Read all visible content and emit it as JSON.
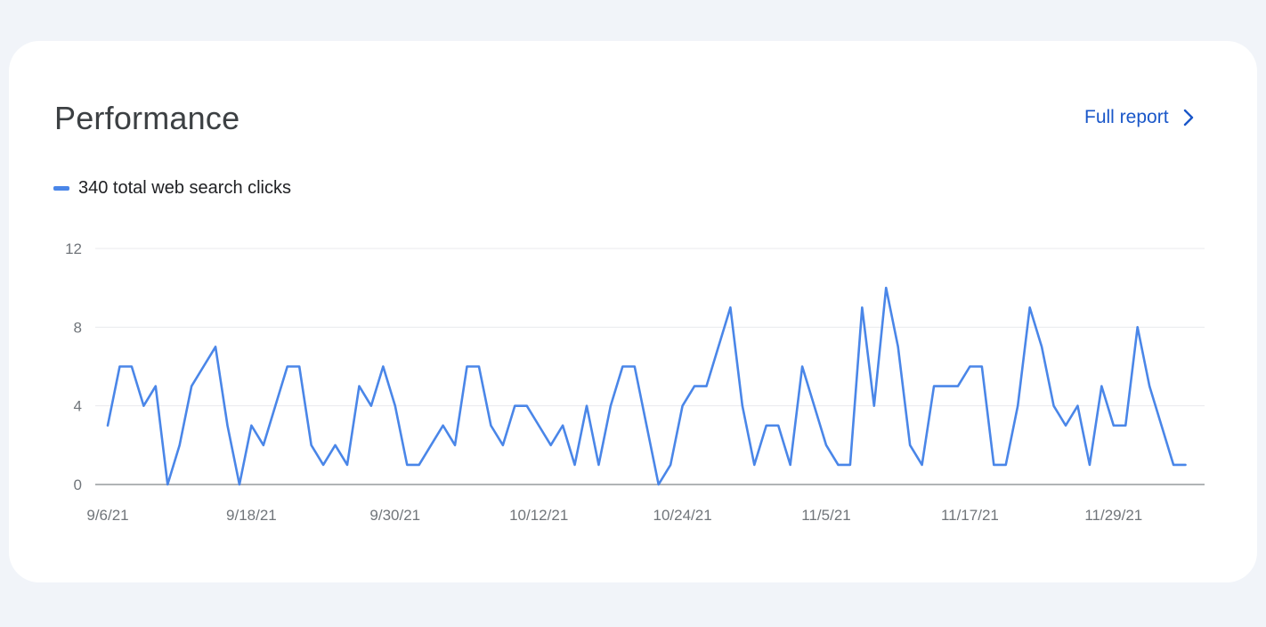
{
  "card": {
    "title": "Performance",
    "full_report_label": "Full report",
    "legend_label": "340 total web search clicks"
  },
  "colors": {
    "background": "#f1f4f9",
    "card": "#ffffff",
    "line": "#4a86e8",
    "link": "#1a57c9",
    "grid": "#e8eaed",
    "axis": "#80868b"
  },
  "icons": {
    "full_report": "chevron-right-icon"
  },
  "chart_data": {
    "type": "line",
    "title": "",
    "xlabel": "",
    "ylabel": "",
    "ylim": [
      0,
      12
    ],
    "yticks": [
      0,
      4,
      8,
      12
    ],
    "grid": true,
    "legend": "top-left",
    "x_start": "9/6/21",
    "x_end": "12/3/21",
    "x_tick_labels": [
      "9/6/21",
      "9/18/21",
      "9/30/21",
      "10/12/21",
      "10/24/21",
      "11/5/21",
      "11/17/21",
      "11/29/21"
    ],
    "series": [
      {
        "name": "340 total web search clicks",
        "color": "#4a86e8",
        "values": [
          3,
          6,
          6,
          4,
          5,
          0,
          2,
          5,
          6,
          7,
          3,
          0,
          3,
          2,
          4,
          6,
          6,
          2,
          1,
          2,
          1,
          5,
          4,
          6,
          4,
          1,
          1,
          2,
          3,
          2,
          6,
          6,
          3,
          2,
          4,
          4,
          3,
          2,
          3,
          1,
          4,
          1,
          4,
          6,
          6,
          3,
          0,
          1,
          4,
          5,
          5,
          7,
          9,
          4,
          1,
          3,
          3,
          1,
          6,
          4,
          2,
          1,
          1,
          9,
          4,
          10,
          7,
          2,
          1,
          5,
          5,
          5,
          6,
          6,
          1,
          1,
          4,
          9,
          7,
          4,
          3,
          4,
          1,
          5,
          3,
          3,
          8,
          5,
          3,
          1,
          1
        ]
      }
    ]
  }
}
